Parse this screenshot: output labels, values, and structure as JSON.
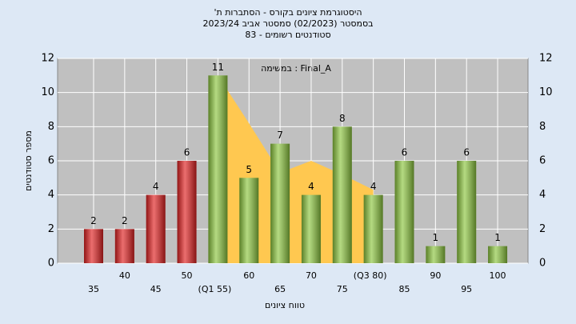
{
  "chart_data": {
    "type": "bar",
    "title": [
      "היסטוגרמת ציונים בקורס - הסתברות ת'",
      "בסמסטר  (02/2023)  סמסטר אביב 2023/24",
      "סטודנטים רשומים - 83"
    ],
    "annotation": "במשימה : Final_A",
    "x_label": "טווח ציונים",
    "y_label": "מספר סטודנטים",
    "categories": [
      "35",
      "40",
      "45",
      "50",
      "(Q1 55)",
      "60",
      "65",
      "70",
      "75",
      "(Q3 80)",
      "85",
      "90",
      "95",
      "100"
    ],
    "values": [
      2,
      2,
      4,
      6,
      11,
      5,
      7,
      4,
      8,
      4,
      6,
      1,
      6,
      1
    ],
    "colors": [
      "#e02020",
      "#e02020",
      "#e02020",
      "#e02020",
      "#8cc63e",
      "#8cc63e",
      "#8cc63e",
      "#8cc63e",
      "#8cc63e",
      "#8cc63e",
      "#8cc63e",
      "#8cc63e",
      "#8cc63e",
      "#8cc63e"
    ],
    "area": {
      "color": "#ffc850",
      "values": [
        null,
        null,
        null,
        null,
        11,
        8.2,
        5.3,
        6,
        5.2,
        4.3,
        null,
        null,
        null,
        null
      ]
    },
    "ylim": [
      0,
      12
    ],
    "yticks": [
      0,
      2,
      4,
      6,
      8,
      10,
      12
    ],
    "grid": true
  }
}
